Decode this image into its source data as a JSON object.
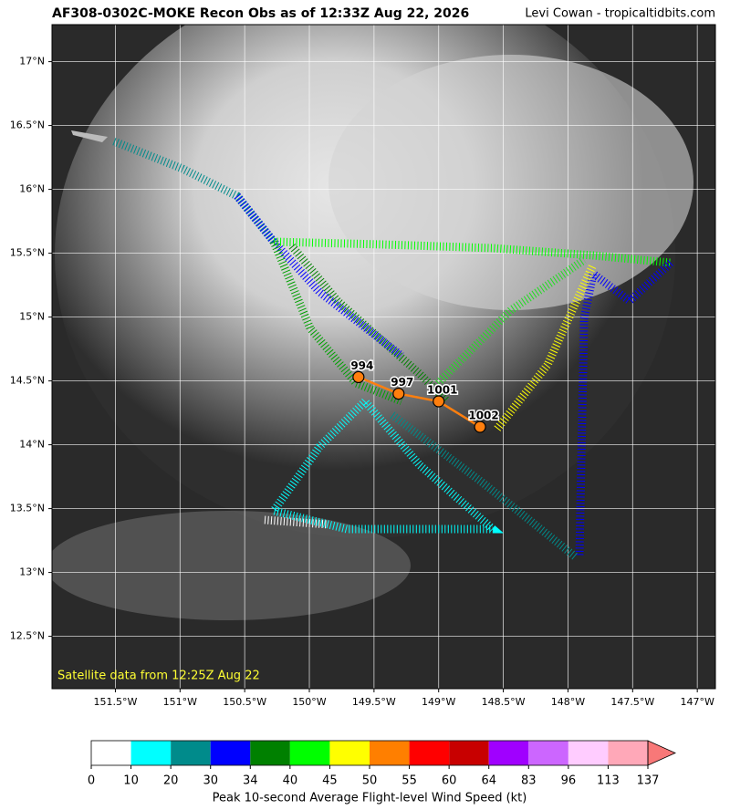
{
  "map": {
    "title": "AF308-0302C-MOKE Recon Obs as of 12:33Z Aug 22, 2026",
    "credit": "Levi Cowan - tropicaltidbits.com",
    "note": "Satellite data from 12:25Z Aug 22",
    "xlim": [
      -151.99,
      -146.86
    ],
    "ylim": [
      12.09,
      17.29
    ],
    "xticks": [
      {
        "value": -151.5,
        "label": "151.5°W"
      },
      {
        "value": -151,
        "label": "151°W"
      },
      {
        "value": -150.5,
        "label": "150.5°W"
      },
      {
        "value": -150,
        "label": "150°W"
      },
      {
        "value": -149.5,
        "label": "149.5°W"
      },
      {
        "value": -149,
        "label": "149°W"
      },
      {
        "value": -148.5,
        "label": "148.5°W"
      },
      {
        "value": -148,
        "label": "148°W"
      },
      {
        "value": -147.5,
        "label": "147.5°W"
      },
      {
        "value": -147,
        "label": "147°W"
      }
    ],
    "yticks": [
      {
        "value": 12.5,
        "label": "12.5°N"
      },
      {
        "value": 13,
        "label": "13°N"
      },
      {
        "value": 13.5,
        "label": "13.5°N"
      },
      {
        "value": 14,
        "label": "14°N"
      },
      {
        "value": 14.5,
        "label": "14.5°N"
      },
      {
        "value": 15,
        "label": "15°N"
      },
      {
        "value": 15.5,
        "label": "15.5°N"
      },
      {
        "value": 16,
        "label": "16°N"
      },
      {
        "value": 16.5,
        "label": "16.5°N"
      },
      {
        "value": 17,
        "label": "17°N"
      }
    ],
    "grid": true,
    "obs": [
      {
        "pressure": "994",
        "lon": -149.62,
        "lat": 14.53
      },
      {
        "pressure": "997",
        "lon": -149.31,
        "lat": 14.4
      },
      {
        "pressure": "1001",
        "lon": -149.0,
        "lat": 14.34
      },
      {
        "pressure": "1002",
        "lon": -148.68,
        "lat": 14.14
      }
    ],
    "obs_color": "#ff7f0e",
    "colorbar": {
      "label": "Peak 10-second Average Flight-level Wind Speed (kt)",
      "ticks": [
        0,
        10,
        20,
        30,
        34,
        40,
        45,
        50,
        55,
        60,
        64,
        83,
        96,
        113,
        137
      ],
      "colors": [
        "#ffffff",
        "#00ffff",
        "#008b8b",
        "#0000ff",
        "#008000",
        "#00ff00",
        "#ffff00",
        "#ff7f00",
        "#ff0000",
        "#c80000",
        "#a000ff",
        "#cc66ff",
        "#ffccff",
        "#ffa8b8"
      ],
      "extend_color": "#f87878"
    }
  }
}
